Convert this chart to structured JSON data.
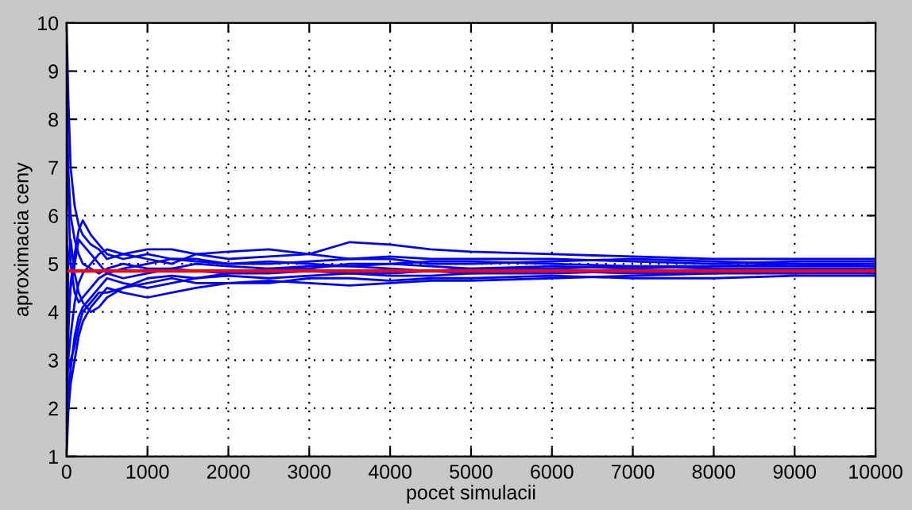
{
  "chart_data": {
    "type": "line",
    "xlabel": "pocet simulacii",
    "ylabel": "aproximacia ceny",
    "x": [
      1,
      20,
      50,
      100,
      150,
      200,
      300,
      400,
      500,
      700,
      1000,
      1300,
      1600,
      2000,
      2500,
      3000,
      3500,
      4000,
      4500,
      5000,
      6000,
      7000,
      8000,
      9000,
      10000
    ],
    "series": [
      {
        "color": "#0000ff",
        "values": [
          10,
          8.5,
          7,
          6.2,
          5.8,
          5.6,
          5.4,
          5.3,
          5.1,
          5.2,
          5.3,
          5.3,
          5.2,
          5.1,
          5.15,
          5.2,
          5.45,
          5.4,
          5.3,
          5.25,
          5.2,
          5.15,
          5.1,
          5.1,
          5.1
        ]
      },
      {
        "color": "#0000ff",
        "values": [
          2,
          3,
          3.5,
          4.2,
          4.6,
          4.8,
          5.0,
          5.2,
          5.3,
          5.2,
          5.1,
          5.0,
          5.2,
          5.25,
          5.3,
          5.2,
          5.1,
          5.1,
          5.0,
          5.0,
          5.05,
          5.1,
          5.05,
          5.0,
          5.0
        ]
      },
      {
        "color": "#0000ff",
        "values": [
          1,
          1.9,
          2.5,
          3,
          3.5,
          3.8,
          4.1,
          4.3,
          4.5,
          4.4,
          4.3,
          4.4,
          4.5,
          4.6,
          4.6,
          4.7,
          4.7,
          4.65,
          4.7,
          4.7,
          4.75,
          4.7,
          4.7,
          4.75,
          4.75
        ]
      },
      {
        "color": "#0000ff",
        "values": [
          9,
          7,
          6,
          5.5,
          5.2,
          5.0,
          4.9,
          4.8,
          4.9,
          5.0,
          4.9,
          4.9,
          5.0,
          4.95,
          4.9,
          4.9,
          5.0,
          5.0,
          4.95,
          4.9,
          4.9,
          4.95,
          4.9,
          4.9,
          4.9
        ]
      },
      {
        "color": "#0000ff",
        "values": [
          3,
          2.2,
          2.8,
          3.5,
          3.9,
          4.1,
          4.3,
          4.5,
          4.7,
          4.6,
          4.5,
          4.6,
          4.7,
          4.8,
          4.8,
          4.85,
          4.8,
          4.8,
          4.85,
          4.8,
          4.8,
          4.85,
          4.85,
          4.8,
          4.85
        ]
      },
      {
        "color": "#0000ff",
        "values": [
          6,
          4,
          4.5,
          5,
          5.5,
          5.4,
          5.2,
          5.0,
          4.8,
          4.7,
          4.8,
          4.9,
          4.85,
          4.8,
          4.9,
          4.95,
          4.95,
          4.9,
          4.85,
          4.9,
          4.95,
          4.9,
          4.95,
          4.95,
          4.95
        ]
      },
      {
        "color": "#0000ff",
        "values": [
          1.5,
          3.5,
          4.6,
          5.2,
          5.7,
          5.9,
          5.6,
          5.4,
          5.2,
          5.1,
          5.2,
          5.1,
          5.05,
          5.0,
          5.0,
          5.05,
          5.1,
          5.15,
          5.1,
          5.1,
          5.1,
          5.05,
          5.0,
          5.05,
          5.05
        ]
      },
      {
        "color": "#0000ff",
        "values": [
          4,
          2.8,
          3,
          3.3,
          3.7,
          4.0,
          4.2,
          4.4,
          4.4,
          4.5,
          4.6,
          4.7,
          4.6,
          4.6,
          4.65,
          4.6,
          4.55,
          4.6,
          4.65,
          4.65,
          4.7,
          4.75,
          4.8,
          4.8,
          4.8
        ]
      },
      {
        "color": "#0000ff",
        "values": [
          8,
          6.5,
          5,
          4.4,
          4.2,
          4.3,
          4.5,
          4.7,
          4.8,
          4.9,
          5.0,
          5.1,
          5.1,
          5.0,
          5.05,
          5.0,
          4.95,
          5.0,
          5.05,
          5.05,
          5.0,
          4.95,
          4.95,
          5.0,
          4.95
        ]
      },
      {
        "color": "#0000ff",
        "values": [
          2.5,
          5,
          5.5,
          4.8,
          4.4,
          4.2,
          4.0,
          4.1,
          4.3,
          4.5,
          4.7,
          4.75,
          4.7,
          4.75,
          4.7,
          4.75,
          4.8,
          4.75,
          4.75,
          4.8,
          4.85,
          4.8,
          4.8,
          4.85,
          4.8
        ]
      }
    ],
    "ref_lines": [
      {
        "axis": "y",
        "value": 4.85,
        "color": "#ff0000"
      }
    ],
    "xlim": [
      0,
      10000
    ],
    "xticks": [
      0,
      1000,
      2000,
      3000,
      4000,
      5000,
      6000,
      7000,
      8000,
      9000,
      10000
    ],
    "ylim": [
      1,
      10
    ],
    "yticks": [
      1,
      2,
      3,
      4,
      5,
      6,
      7,
      8,
      9,
      10
    ],
    "grid": true
  }
}
